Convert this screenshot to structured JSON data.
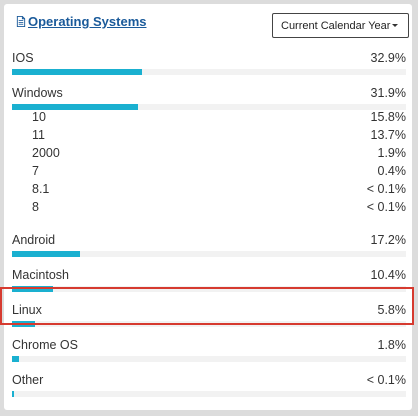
{
  "panel": {
    "title": "Operating Systems",
    "period_select": {
      "value": "Current Calendar Year"
    }
  },
  "rows": [
    {
      "label": "IOS",
      "percent_text": "32.9%",
      "value": 32.9
    },
    {
      "label": "Windows",
      "percent_text": "31.9%",
      "value": 31.9
    },
    {
      "label": "Android",
      "percent_text": "17.2%",
      "value": 17.2
    },
    {
      "label": "Macintosh",
      "percent_text": "10.4%",
      "value": 10.4
    },
    {
      "label": "Linux",
      "percent_text": "5.8%",
      "value": 5.8
    },
    {
      "label": "Chrome OS",
      "percent_text": "1.8%",
      "value": 1.8
    },
    {
      "label": "Other",
      "percent_text": "< 0.1%",
      "value": 0.1
    }
  ],
  "windows_versions": [
    {
      "label": "10",
      "percent_text": "15.8%"
    },
    {
      "label": "11",
      "percent_text": "13.7%"
    },
    {
      "label": "2000",
      "percent_text": "1.9%"
    },
    {
      "label": "7",
      "percent_text": "0.4%"
    },
    {
      "label": "8.1",
      "percent_text": "< 0.1%"
    },
    {
      "label": "8",
      "percent_text": "< 0.1%"
    }
  ],
  "highlighted_row": "Linux",
  "colors": {
    "bar": "#1ab0d0",
    "highlight": "#d63a2f",
    "title": "#1a5a9a"
  }
}
